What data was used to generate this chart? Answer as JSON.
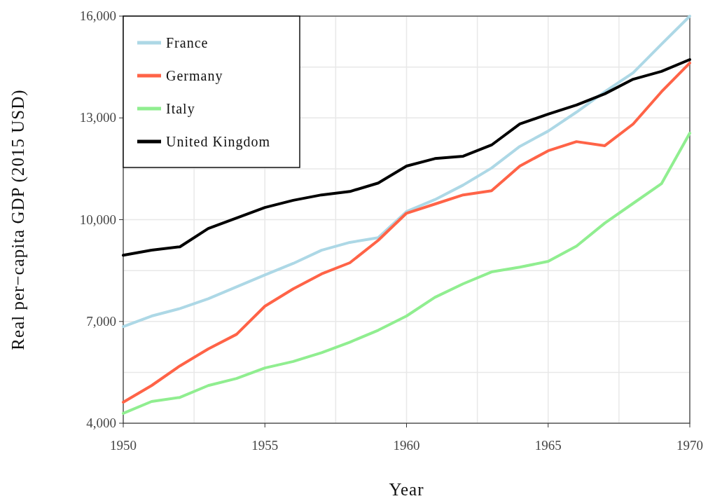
{
  "chart_data": {
    "type": "line",
    "xlabel": "Year",
    "ylabel": "Real per−capita GDP (2015 USD)",
    "x": [
      1950,
      1951,
      1952,
      1953,
      1954,
      1955,
      1956,
      1957,
      1958,
      1959,
      1960,
      1961,
      1962,
      1963,
      1964,
      1965,
      1966,
      1967,
      1968,
      1969,
      1970
    ],
    "series": [
      {
        "name": "France",
        "color": "#add8e6",
        "values": [
          6850,
          7160,
          7380,
          7670,
          8020,
          8370,
          8710,
          9100,
          9330,
          9470,
          10240,
          10590,
          11020,
          11520,
          12160,
          12610,
          13170,
          13770,
          14330,
          15170,
          16000
        ]
      },
      {
        "name": "Germany",
        "color": "#ff6347",
        "values": [
          4620,
          5110,
          5690,
          6190,
          6620,
          7450,
          7960,
          8400,
          8730,
          9390,
          10190,
          10460,
          10730,
          10850,
          11580,
          12030,
          12300,
          12180,
          12820,
          13770,
          14620
        ]
      },
      {
        "name": "Italy",
        "color": "#90ee90",
        "values": [
          4290,
          4640,
          4760,
          5110,
          5320,
          5630,
          5820,
          6080,
          6390,
          6740,
          7160,
          7710,
          8110,
          8460,
          8600,
          8770,
          9220,
          9900,
          10480,
          11060,
          12550
        ]
      },
      {
        "name": "United Kingdom",
        "color": "#000000",
        "values": [
          8950,
          9100,
          9200,
          9740,
          10050,
          10360,
          10570,
          10730,
          10830,
          11080,
          11580,
          11800,
          11870,
          12200,
          12820,
          13110,
          13380,
          13710,
          14140,
          14370,
          14720
        ]
      }
    ],
    "xlim": [
      1950,
      1970
    ],
    "xticks": [
      1950,
      {
        "value": 1952.5,
        "label": null
      },
      1955,
      {
        "value": 1957.5,
        "label": null
      },
      1960,
      {
        "value": 1962.5,
        "label": null
      },
      1965,
      {
        "value": 1967.5,
        "label": null
      },
      1970
    ],
    "ylim": [
      4000,
      16000
    ],
    "yticks": [
      {
        "value": 4000,
        "label": "4,000"
      },
      {
        "value": 5500,
        "label": null
      },
      {
        "value": 7000,
        "label": "7,000"
      },
      {
        "value": 8500,
        "label": null
      },
      {
        "value": 10000,
        "label": "10,000"
      },
      {
        "value": 11500,
        "label": null
      },
      {
        "value": 13000,
        "label": "13,000"
      },
      {
        "value": 14500,
        "label": null
      },
      {
        "value": 16000,
        "label": "16,000"
      }
    ],
    "grid": true,
    "legend": "top left",
    "marker": "none",
    "line_style": "solid"
  }
}
